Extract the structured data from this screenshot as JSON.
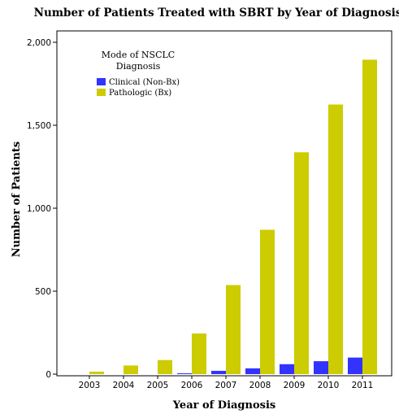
{
  "chart_data": {
    "type": "bar",
    "title": "Number of Patients Treated with SBRT by Year of Diagnosis",
    "xlabel": "Year of Diagnosis",
    "ylabel": "Number of Patients",
    "categories": [
      "2003",
      "2004",
      "2005",
      "2006",
      "2007",
      "2008",
      "2009",
      "2010",
      "2011"
    ],
    "series": [
      {
        "name": "Clinical (Non-Bx)",
        "color": "#3333ff",
        "values": [
          0,
          0,
          0,
          5,
          20,
          35,
          60,
          78,
          100
        ]
      },
      {
        "name": "Pathologic (Bx)",
        "color": "#cccc00",
        "values": [
          15,
          52,
          85,
          245,
          537,
          870,
          1337,
          1625,
          1895
        ]
      }
    ],
    "ylim": [
      0,
      2000
    ],
    "yticks": [
      0,
      500,
      1000,
      1500,
      2000
    ],
    "ytick_labels": [
      "0",
      "500",
      "1,000",
      "1,500",
      "2,000"
    ],
    "legend": {
      "title_line1": "Mode of NSCLC",
      "title_line2": "Diagnosis",
      "placement": "top-left"
    },
    "grid": false
  }
}
